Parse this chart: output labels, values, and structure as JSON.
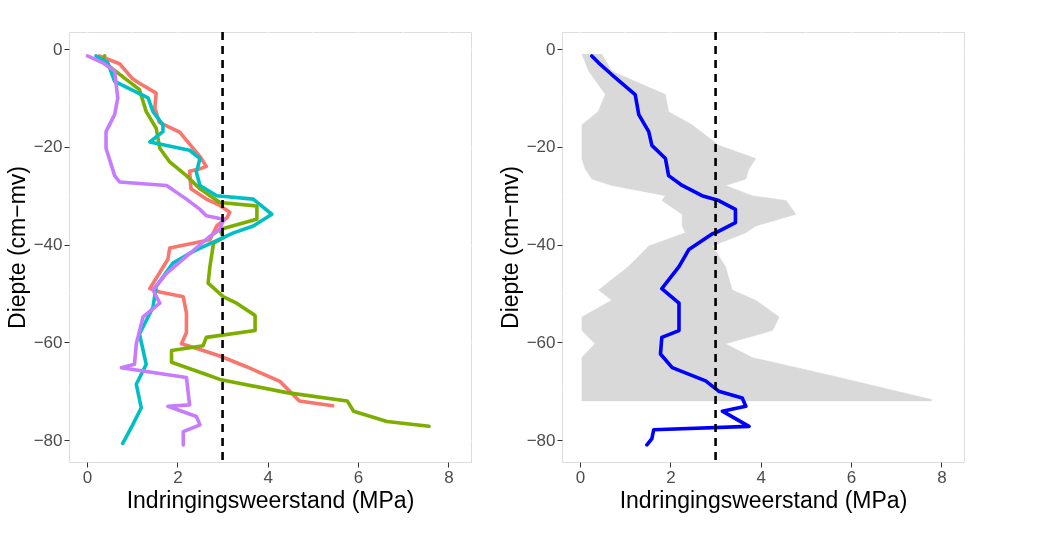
{
  "chart_data": [
    {
      "type": "line",
      "xlabel": "Indringingsweerstand (MPa)",
      "ylabel": "Diepte (cm−mv)",
      "xlim": [
        -0.4,
        8.5
      ],
      "ylim": [
        -84.5,
        3.5
      ],
      "xticks": [
        0,
        2,
        4,
        6,
        8
      ],
      "yticks": [
        0,
        -20,
        -40,
        -60,
        -80
      ],
      "grid": true,
      "ref_lines": [
        {
          "axis": "x",
          "value": 3,
          "color": "#000000",
          "line_style": "dashed"
        }
      ],
      "series": [
        {
          "color": "#f8766d",
          "x": [
            0.27,
            0.72,
            1.0,
            1.16,
            1.53,
            1.5,
            1.6,
            1.83,
            2.05,
            2.5,
            2.64,
            2.5,
            2.27,
            2.3,
            2.64,
            2.94,
            3.16,
            3.1,
            2.87,
            2.72,
            1.83,
            1.79,
            1.39,
            1.61,
            2.13,
            2.2,
            2.2,
            2.09,
            2.57,
            2.94,
            3.53,
            4.27,
            4.7,
            5.44
          ],
          "values": [
            -1.4,
            -3,
            -6,
            -7,
            -9,
            -12,
            -15,
            -16,
            -17,
            -22,
            -24,
            -24.5,
            -25,
            -28.6,
            -30.7,
            -32,
            -33.4,
            -34.5,
            -36.2,
            -39,
            -40.7,
            -43,
            -49,
            -49.7,
            -50.7,
            -54,
            -58,
            -60.3,
            -61.7,
            -62.8,
            -65,
            -68,
            -72,
            -73
          ]
        },
        {
          "color": "#7cae00",
          "x": [
            0.39,
            0.35,
            0.53,
            1.16,
            1.31,
            1.53,
            1.61,
            1.83,
            2.2,
            2.5,
            2.94,
            3.76,
            3.76,
            2.94,
            3.02,
            2.8,
            2.72,
            2.68,
            3.02,
            3.31,
            3.72,
            3.72,
            2.64,
            2.57,
            1.87,
            1.87,
            2.64,
            2.94,
            4.42,
            5.76,
            5.9,
            6.64,
            7.57
          ],
          "values": [
            -1.4,
            -2.4,
            -3.8,
            -8.3,
            -12.8,
            -16.2,
            -20.3,
            -23.1,
            -25.9,
            -28.6,
            -31.4,
            -32.1,
            -34.8,
            -36.9,
            -38.6,
            -39.7,
            -44.5,
            -47.9,
            -50.7,
            -52,
            -54.5,
            -57.6,
            -59,
            -60.7,
            -61.7,
            -64.1,
            -66.6,
            -67.6,
            -70.3,
            -72,
            -74.1,
            -76.2,
            -77.2
          ]
        },
        {
          "color": "#00bfc4",
          "x": [
            0.2,
            0.46,
            0.61,
            1.35,
            1.46,
            1.68,
            1.68,
            1.39,
            2.27,
            2.5,
            2.42,
            2.5,
            2.87,
            3.68,
            4.09,
            3.68,
            3.24,
            2.35,
            1.9,
            1.53,
            1.46,
            1.16,
            1.31,
            1.09,
            1.2,
            1.01,
            0.79
          ],
          "values": [
            -1.4,
            -2.8,
            -6.6,
            -10,
            -12.8,
            -15.5,
            -16.9,
            -19,
            -20.7,
            -22.4,
            -25.2,
            -27.9,
            -30,
            -30.7,
            -33.8,
            -36.2,
            -37.6,
            -41.4,
            -43.8,
            -48.6,
            -52.8,
            -58.3,
            -64.5,
            -68.6,
            -73.4,
            -76.9,
            -80.7
          ]
        },
        {
          "color": "#c77cff",
          "x": [
            0.01,
            0.35,
            0.61,
            0.68,
            0.61,
            0.42,
            0.42,
            0.61,
            0.72,
            1.76,
            2.2,
            2.5,
            2.64,
            3.02,
            2.94,
            2.72,
            2.2,
            1.76,
            1.46,
            1.61,
            1.24,
            1.09,
            1.05,
            0.76,
            2.2,
            2.27,
            1.79,
            2.42,
            2.5,
            2.13,
            2.13
          ],
          "values": [
            -1.4,
            -2.8,
            -4.5,
            -10,
            -13.4,
            -16.9,
            -20.3,
            -25.9,
            -27.2,
            -27.9,
            -30.7,
            -32.8,
            -34.1,
            -34.8,
            -36.9,
            -38.3,
            -42.4,
            -45.9,
            -49.3,
            -52,
            -54.8,
            -60.3,
            -64.5,
            -65.2,
            -67.2,
            -72.8,
            -73.1,
            -75.2,
            -76.9,
            -78.3,
            -81
          ]
        }
      ]
    },
    {
      "type": "line",
      "xlabel": "Indringingsweerstand (MPa)",
      "ylabel": "Diepte (cm−mv)",
      "xlim": [
        -0.4,
        8.5
      ],
      "ylim": [
        -84.5,
        3.5
      ],
      "xticks": [
        0,
        2,
        4,
        6,
        8
      ],
      "yticks": [
        0,
        -20,
        -40,
        -60,
        -80
      ],
      "grid": true,
      "ref_lines": [
        {
          "axis": "x",
          "value": 3,
          "color": "#000000",
          "line_style": "dashed"
        }
      ],
      "series": [
        {
          "type": "area",
          "color": "#d3d3d3",
          "x": [
            0.04,
            0.19,
            0.56,
            0.4,
            0.04,
            0.04,
            0.04,
            0.11,
            0.26,
            0.7,
            1.89,
            1.81,
            2.26,
            2.26,
            2.33,
            1.52,
            1.07,
            0.41,
            0.7,
            0.04,
            0.04,
            0.33,
            0.04,
            0.04,
            0.04,
            0.04,
            7.78,
            7.78,
            5.74,
            3.81,
            3.22,
            4.26,
            4.41,
            3.89,
            3.37,
            3.22,
            2.93,
            3.67,
            3.89,
            4.78,
            4.56,
            3.81,
            3.22,
            3.67,
            3.74,
            3.89,
            3.07,
            2.48,
            1.96,
            1.89,
            0.7,
            0.48
          ],
          "values": [
            -1,
            -4.5,
            -9.3,
            -12.8,
            -15.5,
            -19.7,
            -22.4,
            -24.5,
            -26.6,
            -27.9,
            -30,
            -31,
            -33.8,
            -36.2,
            -37.6,
            -40.3,
            -44.5,
            -49.3,
            -51.4,
            -54.8,
            -57.6,
            -60.3,
            -63.1,
            -67.2,
            -71.7,
            -72,
            -72,
            -71.7,
            -67.2,
            -63.1,
            -60.3,
            -57.6,
            -54.8,
            -51.4,
            -49.3,
            -44.5,
            -40.3,
            -37.6,
            -36.2,
            -33.8,
            -31,
            -30,
            -27.9,
            -26.6,
            -24.5,
            -22.4,
            -19.7,
            -15.5,
            -12.8,
            -9.3,
            -4.5,
            -1
          ]
        },
        {
          "color": "#0000ff",
          "x": [
            0.26,
            0.41,
            0.7,
            1.22,
            1.3,
            1.52,
            1.59,
            1.89,
            1.96,
            2.26,
            2.7,
            3.07,
            3.44,
            3.44,
            3.0,
            2.93,
            2.41,
            2.19,
            1.81,
            2.19,
            2.19,
            1.81,
            1.78,
            2.04,
            2.78,
            3.07,
            3.59,
            3.67,
            3.15,
            3.74,
            1.63,
            1.59,
            1.48
          ],
          "values": [
            -1.4,
            -2.8,
            -5.2,
            -9.3,
            -13.4,
            -16.9,
            -19.7,
            -22.4,
            -25.9,
            -27.9,
            -30,
            -31,
            -32.8,
            -35.5,
            -37.6,
            -37.8,
            -41,
            -44.5,
            -49,
            -52,
            -57.6,
            -59,
            -62.4,
            -65.2,
            -67.9,
            -70,
            -71.4,
            -73.1,
            -74.1,
            -77.2,
            -77.9,
            -79.7,
            -81
          ]
        }
      ]
    }
  ]
}
